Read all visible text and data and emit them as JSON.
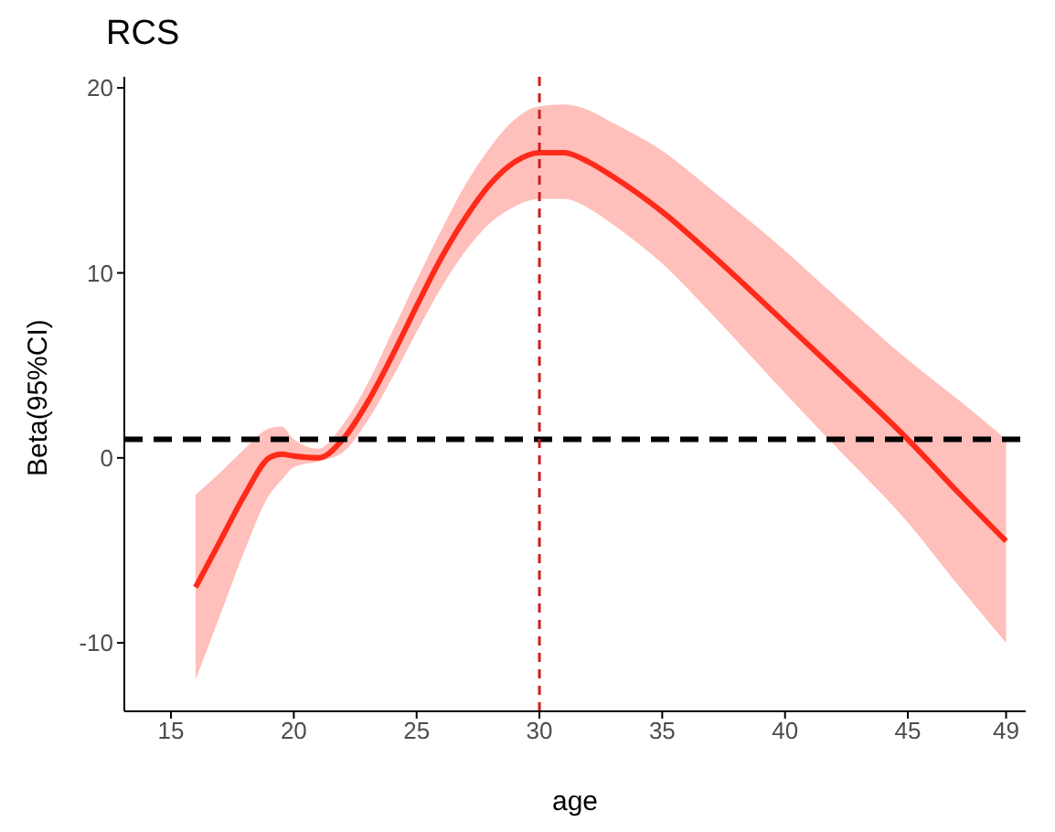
{
  "chart_data": {
    "type": "line",
    "title": "RCS",
    "xlabel": "age",
    "ylabel": "Beta(95%CI)",
    "x": [
      16,
      17,
      18,
      19,
      19.5,
      20,
      21,
      22,
      23,
      24,
      25,
      26,
      27,
      28,
      29,
      30,
      31,
      32,
      33,
      35,
      37,
      40,
      42,
      45,
      47,
      49
    ],
    "series": [
      {
        "color": "#ff2a1a",
        "values": [
          -7,
          -4.5,
          -2,
          0,
          0.2,
          0.1,
          0,
          1,
          3,
          5.5,
          8.2,
          10.8,
          13,
          14.8,
          16,
          16.5,
          16.5,
          16,
          15.2,
          13.3,
          11,
          7.3,
          4.8,
          1,
          -1.8,
          -4.5
        ],
        "lower": [
          -12,
          -8.5,
          -5,
          -2,
          -1.2,
          -0.5,
          -0.2,
          0.3,
          2,
          4.3,
          6.8,
          9.2,
          11.2,
          12.7,
          13.6,
          14,
          14,
          13.5,
          12.6,
          10.5,
          7.8,
          3.5,
          0.7,
          -3.5,
          -6.8,
          -10
        ],
        "upper": [
          -2,
          -0.8,
          0.5,
          1.6,
          1.7,
          1,
          0.5,
          1.8,
          4,
          6.8,
          9.6,
          12.3,
          14.8,
          16.8,
          18.3,
          19,
          19.1,
          18.8,
          18.1,
          16.6,
          14.5,
          11.2,
          8.8,
          5.3,
          3.2,
          1
        ]
      }
    ],
    "xlim": [
      13.1,
      49.8
    ],
    "xticks": [
      15,
      20,
      25,
      30,
      35,
      40,
      45,
      49
    ],
    "ylim": [
      -13.7,
      20.6
    ],
    "yticks": [
      -10,
      0,
      10,
      20
    ],
    "ref_lines": [
      {
        "axis": "y",
        "value": 1,
        "color": "#000000",
        "line_style": "dashed"
      },
      {
        "axis": "x",
        "value": 30,
        "color": "#cc1f1f",
        "line_style": "dashed"
      }
    ],
    "grid": false,
    "legend": false,
    "marker": "none",
    "line_style": "solid"
  }
}
